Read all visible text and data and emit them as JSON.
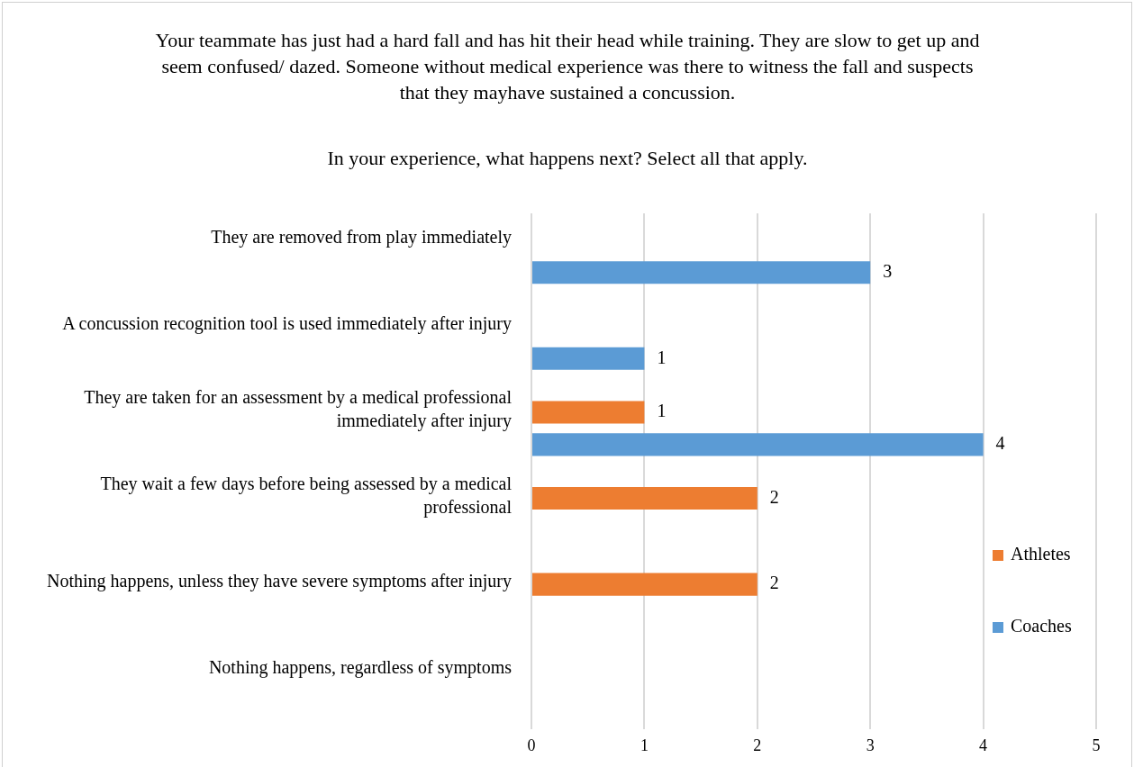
{
  "chart_data": {
    "type": "bar",
    "orientation": "horizontal",
    "title": "Your teammate has just had a hard fall and has hit their head while training. They are slow to get up and seem confused/ dazed.  Someone without medical experience was there to witness the fall and suspects that they mayhave sustained a concussion.",
    "subtitle": "In your experience, what happens next? Select all that apply.",
    "categories": [
      "They are removed from play immediately",
      "A concussion recognition tool is used immediately after injury",
      "They are taken for an assessment by a medical professional immediately after injury",
      "They wait a few days before being assessed by a medical professional",
      "Nothing happens, unless they have severe symptoms after injury",
      "Nothing happens, regardless of symptoms"
    ],
    "series": [
      {
        "name": "Athletes",
        "color": "#ed7d31",
        "values": [
          0,
          0,
          1,
          2,
          2,
          0
        ],
        "value_labels": [
          null,
          null,
          "1",
          "2",
          "2",
          null
        ]
      },
      {
        "name": "Coaches",
        "color": "#5b9bd5",
        "values": [
          3,
          1,
          4,
          0,
          0,
          0
        ],
        "value_labels": [
          "3",
          "1",
          "4",
          null,
          null,
          null
        ]
      }
    ],
    "xlim": [
      0,
      5
    ],
    "xticks": [
      0,
      1,
      2,
      3,
      4,
      5
    ],
    "grid": "x",
    "legend": "right"
  }
}
